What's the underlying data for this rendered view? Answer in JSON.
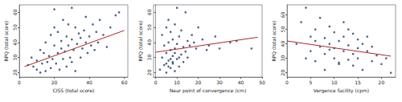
{
  "chart_data": [
    {
      "type": "scatter",
      "x_label": "CISS (total score)",
      "y_label": "RPQ (total score)",
      "xlim": [
        0,
        62
      ],
      "xticks": [
        0,
        20,
        40,
        60
      ],
      "ylim": [
        17,
        65
      ],
      "yticks": [
        20,
        30,
        40,
        50,
        60
      ],
      "series": [
        {
          "type": "scatter",
          "color": "#1a3a6b",
          "marker": "circle",
          "x": [
            5,
            7,
            8,
            10,
            10,
            12,
            12,
            13,
            14,
            15,
            15,
            16,
            17,
            18,
            18,
            19,
            20,
            20,
            21,
            22,
            22,
            23,
            24,
            24,
            25,
            25,
            26,
            27,
            27,
            28,
            28,
            29,
            30,
            30,
            31,
            32,
            32,
            33,
            34,
            35,
            35,
            36,
            37,
            38,
            38,
            39,
            40,
            41,
            42,
            43,
            44,
            45,
            46,
            48,
            50,
            52,
            55,
            57,
            20,
            30
          ],
          "values": [
            25,
            30,
            24,
            28,
            22,
            35,
            20,
            26,
            33,
            40,
            21,
            27,
            31,
            45,
            23,
            29,
            38,
            50,
            26,
            33,
            47,
            22,
            36,
            41,
            29,
            55,
            34,
            24,
            44,
            38,
            52,
            30,
            27,
            42,
            35,
            50,
            21,
            39,
            46,
            30,
            43,
            36,
            48,
            40,
            57,
            33,
            44,
            38,
            52,
            35,
            47,
            40,
            55,
            45,
            37,
            50,
            58,
            60,
            62,
            63
          ]
        },
        {
          "type": "line",
          "color": "#b5242a",
          "line_style": "solid",
          "x": [
            3,
            60
          ],
          "values": [
            24,
            48
          ]
        }
      ]
    },
    {
      "type": "scatter",
      "x_label": "Near point of convergence (cm)",
      "y_label": "RPQ (total score)",
      "xlim": [
        -1,
        50
      ],
      "xticks": [
        0,
        10,
        20,
        30,
        40,
        50
      ],
      "ylim": [
        17,
        65
      ],
      "yticks": [
        20,
        30,
        40,
        50,
        60
      ],
      "series": [
        {
          "type": "scatter",
          "color": "#1a3a6b",
          "marker": "circle",
          "x": [
            2,
            3,
            3,
            4,
            4,
            5,
            5,
            5,
            6,
            6,
            6,
            7,
            7,
            7,
            8,
            8,
            8,
            9,
            9,
            9,
            10,
            10,
            10,
            11,
            11,
            12,
            12,
            13,
            13,
            14,
            14,
            15,
            15,
            16,
            17,
            18,
            19,
            20,
            22,
            24,
            25,
            28,
            30,
            35,
            38,
            45,
            5,
            7,
            9,
            11,
            6,
            8
          ],
          "values": [
            22,
            30,
            45,
            25,
            38,
            20,
            33,
            50,
            28,
            40,
            55,
            23,
            35,
            47,
            26,
            31,
            42,
            21,
            36,
            52,
            29,
            39,
            63,
            24,
            44,
            32,
            48,
            27,
            37,
            34,
            60,
            30,
            41,
            38,
            45,
            40,
            36,
            50,
            42,
            35,
            38,
            44,
            36,
            40,
            41,
            36,
            26,
            29,
            33,
            30,
            24,
            27
          ]
        },
        {
          "type": "line",
          "color": "#b5242a",
          "line_style": "solid",
          "x": [
            0,
            48
          ],
          "values": [
            33.5,
            43.5
          ]
        }
      ]
    },
    {
      "type": "scatter",
      "x_label": "Vergence facility (cpm)",
      "y_label": "RPQ (total score)",
      "xlim": [
        0,
        23
      ],
      "xticks": [
        0,
        5,
        10,
        15,
        20
      ],
      "ylim": [
        17,
        67
      ],
      "yticks": [
        20,
        30,
        40,
        50,
        60
      ],
      "series": [
        {
          "type": "scatter",
          "color": "#1a3a6b",
          "marker": "circle",
          "x": [
            2,
            3,
            4,
            4,
            5,
            5,
            6,
            6,
            7,
            7,
            8,
            8,
            8,
            9,
            9,
            10,
            10,
            10,
            11,
            11,
            12,
            12,
            12,
            13,
            13,
            14,
            14,
            14,
            15,
            15,
            15,
            16,
            16,
            17,
            17,
            18,
            18,
            19,
            20,
            21,
            22,
            6,
            9,
            11,
            13
          ],
          "values": [
            40,
            55,
            30,
            65,
            45,
            35,
            50,
            28,
            38,
            58,
            33,
            44,
            22,
            40,
            52,
            30,
            37,
            48,
            26,
            42,
            35,
            45,
            55,
            29,
            39,
            33,
            47,
            25,
            37,
            43,
            30,
            40,
            22,
            35,
            45,
            28,
            38,
            32,
            26,
            30,
            20,
            42,
            36,
            27,
            50
          ]
        },
        {
          "type": "line",
          "color": "#b5242a",
          "line_style": "solid",
          "x": [
            0,
            22
          ],
          "values": [
            42,
            31.5
          ]
        }
      ]
    }
  ]
}
